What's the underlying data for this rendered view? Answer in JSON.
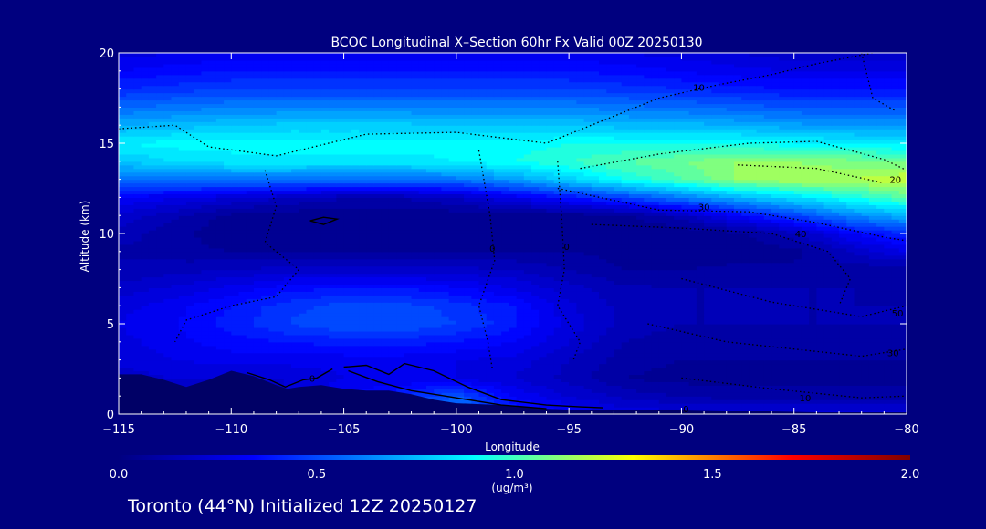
{
  "chart_data": {
    "type": "heatmap",
    "title": "BCOC Longitudinal X–Section 60hr  Fx Valid 00Z 20250130",
    "xlabel": "Longitude",
    "ylabel": "Altitude (km)",
    "xlim": [
      -115,
      -80
    ],
    "ylim": [
      0,
      20
    ],
    "x_ticks": [
      -115,
      -110,
      -105,
      -100,
      -95,
      -90,
      -85,
      -80
    ],
    "x_tick_labels": [
      "−115",
      "−110",
      "−105",
      "−100",
      "−95",
      "−90",
      "−85",
      "−80"
    ],
    "y_ticks": [
      0,
      5,
      10,
      15,
      20
    ],
    "y_tick_labels": [
      "0",
      "5",
      "10",
      "15",
      "20"
    ],
    "colorbar": {
      "min": 0.0,
      "max": 2.0,
      "ticks": [
        0.0,
        0.5,
        1.0,
        1.5,
        2.0
      ],
      "tick_labels": [
        "0.0",
        "0.5",
        "1.0",
        "1.5",
        "2.0"
      ],
      "units_label": "(ug/m³)",
      "colors": [
        "#000080",
        "#0000ff",
        "#00ffff",
        "#ffff00",
        "#ff0000",
        "#800000"
      ]
    },
    "grid": {
      "lon": [
        -115,
        -112.5,
        -110,
        -107.5,
        -105,
        -102.5,
        -100,
        -97.5,
        -95,
        -92.5,
        -90,
        -87.5,
        -85,
        -82.5,
        -80
      ],
      "alt": [
        0,
        1,
        2,
        3,
        4,
        5,
        6,
        7,
        8,
        9,
        10,
        11,
        12,
        13,
        14,
        15,
        16,
        17,
        18,
        19,
        20
      ],
      "values": [
        [
          0.2,
          0.2,
          0.2,
          0.25,
          0.55,
          0.65,
          0.7,
          0.45,
          0.35,
          0.3,
          0.28,
          0.28,
          0.28,
          0.28,
          0.28
        ],
        [
          0.2,
          0.2,
          0.2,
          0.25,
          0.35,
          0.45,
          0.55,
          0.35,
          0.25,
          0.18,
          0.15,
          0.12,
          0.12,
          0.12,
          0.12
        ],
        [
          0.22,
          0.25,
          0.25,
          0.25,
          0.3,
          0.3,
          0.3,
          0.25,
          0.18,
          0.1,
          0.08,
          0.08,
          0.08,
          0.08,
          0.08
        ],
        [
          0.26,
          0.3,
          0.32,
          0.32,
          0.32,
          0.32,
          0.3,
          0.28,
          0.2,
          0.12,
          0.1,
          0.1,
          0.1,
          0.1,
          0.1
        ],
        [
          0.28,
          0.33,
          0.38,
          0.4,
          0.42,
          0.42,
          0.4,
          0.35,
          0.25,
          0.15,
          0.12,
          0.12,
          0.12,
          0.12,
          0.12
        ],
        [
          0.3,
          0.35,
          0.42,
          0.5,
          0.55,
          0.55,
          0.5,
          0.42,
          0.28,
          0.18,
          0.15,
          0.15,
          0.15,
          0.15,
          0.15
        ],
        [
          0.28,
          0.33,
          0.4,
          0.48,
          0.52,
          0.52,
          0.48,
          0.4,
          0.26,
          0.18,
          0.15,
          0.15,
          0.15,
          0.15,
          0.15
        ],
        [
          0.22,
          0.26,
          0.32,
          0.38,
          0.4,
          0.4,
          0.36,
          0.3,
          0.22,
          0.16,
          0.15,
          0.15,
          0.15,
          0.15,
          0.12
        ],
        [
          0.16,
          0.18,
          0.2,
          0.22,
          0.22,
          0.22,
          0.22,
          0.2,
          0.15,
          0.1,
          0.1,
          0.12,
          0.12,
          0.12,
          0.1
        ],
        [
          0.14,
          0.12,
          0.1,
          0.1,
          0.1,
          0.1,
          0.1,
          0.1,
          0.1,
          0.08,
          0.06,
          0.06,
          0.08,
          0.2,
          0.3
        ],
        [
          0.18,
          0.12,
          0.06,
          0.06,
          0.06,
          0.06,
          0.06,
          0.06,
          0.06,
          0.06,
          0.05,
          0.08,
          0.18,
          0.35,
          0.45
        ],
        [
          0.24,
          0.16,
          0.08,
          0.06,
          0.06,
          0.06,
          0.06,
          0.06,
          0.06,
          0.08,
          0.18,
          0.35,
          0.5,
          0.65,
          0.75
        ],
        [
          0.35,
          0.3,
          0.25,
          0.2,
          0.15,
          0.15,
          0.2,
          0.3,
          0.4,
          0.5,
          0.62,
          0.75,
          0.85,
          0.95,
          1.05
        ],
        [
          0.6,
          0.62,
          0.62,
          0.62,
          0.6,
          0.6,
          0.62,
          0.7,
          0.82,
          0.95,
          1.05,
          1.15,
          1.2,
          1.2,
          1.25
        ],
        [
          0.8,
          0.85,
          0.88,
          0.88,
          0.88,
          0.88,
          0.9,
          0.95,
          1.0,
          1.05,
          1.1,
          1.15,
          1.15,
          1.12,
          1.1
        ],
        [
          0.9,
          0.92,
          0.92,
          0.92,
          0.92,
          0.92,
          0.92,
          0.92,
          0.95,
          0.95,
          0.95,
          0.95,
          0.92,
          0.9,
          0.88
        ],
        [
          0.75,
          0.78,
          0.8,
          0.82,
          0.82,
          0.82,
          0.8,
          0.8,
          0.8,
          0.78,
          0.78,
          0.75,
          0.72,
          0.7,
          0.7
        ],
        [
          0.6,
          0.62,
          0.65,
          0.65,
          0.65,
          0.65,
          0.65,
          0.65,
          0.65,
          0.62,
          0.6,
          0.58,
          0.55,
          0.55,
          0.55
        ],
        [
          0.45,
          0.48,
          0.5,
          0.5,
          0.5,
          0.5,
          0.5,
          0.5,
          0.5,
          0.48,
          0.45,
          0.42,
          0.4,
          0.4,
          0.4
        ],
        [
          0.35,
          0.38,
          0.4,
          0.4,
          0.4,
          0.4,
          0.4,
          0.4,
          0.4,
          0.38,
          0.35,
          0.32,
          0.3,
          0.3,
          0.3
        ],
        [
          0.28,
          0.3,
          0.32,
          0.32,
          0.32,
          0.32,
          0.32,
          0.32,
          0.32,
          0.3,
          0.28,
          0.25,
          0.22,
          0.22,
          0.22
        ]
      ]
    },
    "terrain": {
      "lon": [
        -115,
        -114,
        -113,
        -112,
        -111,
        -110,
        -109,
        -108,
        -107.5,
        -107,
        -106,
        -105,
        -104,
        -103,
        -102,
        -101,
        -100,
        -98,
        -96,
        -95,
        -94,
        -92,
        -90,
        -88,
        -86,
        -84,
        -82,
        -80
      ],
      "alt": [
        2.2,
        2.2,
        1.9,
        1.5,
        1.9,
        2.4,
        2.1,
        1.6,
        1.4,
        1.5,
        1.6,
        1.4,
        1.3,
        1.3,
        1.1,
        0.8,
        0.6,
        0.5,
        0.3,
        0.25,
        0.2,
        0.2,
        0.2,
        0.15,
        0.15,
        0.1,
        0.1,
        0.1
      ]
    },
    "temperature_contours": {
      "units": "°C",
      "labels": [
        {
          "text": "-10",
          "lon": -89.3,
          "alt": 18.1
        },
        {
          "text": "20",
          "lon": -80.5,
          "alt": 13.0
        },
        {
          "text": "30",
          "lon": -89.0,
          "alt": 11.5
        },
        {
          "text": "40",
          "lon": -84.7,
          "alt": 10.0
        },
        {
          "text": "0",
          "lon": -98.4,
          "alt": 9.2
        },
        {
          "text": "0",
          "lon": -95.1,
          "alt": 9.3
        },
        {
          "text": "0",
          "lon": -89.8,
          "alt": 0.3
        },
        {
          "text": "50",
          "lon": -80.4,
          "alt": 5.6
        },
        {
          "text": "30",
          "lon": -80.6,
          "alt": 3.4
        },
        {
          "text": "10",
          "lon": -84.5,
          "alt": 0.9
        },
        {
          "text": "0",
          "lon": -106.4,
          "alt": 2.0
        }
      ],
      "lines": [
        [
          [
            -115,
            15.8
          ],
          [
            -112.5,
            16.0
          ],
          [
            -111,
            14.8
          ],
          [
            -108,
            14.3
          ],
          [
            -104,
            15.5
          ],
          [
            -100,
            15.6
          ],
          [
            -96,
            15.0
          ],
          [
            -93,
            16.5
          ],
          [
            -91,
            17.5
          ],
          [
            -88.5,
            18.2
          ],
          [
            -86,
            18.8
          ],
          [
            -84,
            19.4
          ],
          [
            -81.5,
            20
          ]
        ],
        [
          [
            -82,
            20
          ],
          [
            -81.5,
            17.5
          ],
          [
            -80.5,
            16.8
          ]
        ],
        [
          [
            -94.5,
            13.6
          ],
          [
            -91,
            14.4
          ],
          [
            -87,
            15.0
          ],
          [
            -84,
            15.1
          ],
          [
            -81,
            14.1
          ],
          [
            -80,
            13.5
          ]
        ],
        [
          [
            -87.5,
            13.8
          ],
          [
            -84,
            13.6
          ],
          [
            -81,
            12.8
          ]
        ],
        [
          [
            -95.5,
            12.5
          ],
          [
            -91,
            11.3
          ],
          [
            -87,
            11.2
          ],
          [
            -84,
            10.6
          ],
          [
            -81,
            9.8
          ],
          [
            -80,
            9.6
          ]
        ],
        [
          [
            -94,
            10.5
          ],
          [
            -90,
            10.3
          ],
          [
            -86,
            10.0
          ],
          [
            -83.5,
            9.0
          ],
          [
            -82.5,
            7.5
          ],
          [
            -83,
            6.0
          ]
        ],
        [
          [
            -99,
            14.6
          ],
          [
            -98.5,
            11.0
          ],
          [
            -98.3,
            8.5
          ],
          [
            -99,
            6.0
          ],
          [
            -98.6,
            4.0
          ],
          [
            -98.4,
            2.5
          ]
        ],
        [
          [
            -95.5,
            14.0
          ],
          [
            -95.3,
            10.5
          ],
          [
            -95.2,
            8.0
          ],
          [
            -95.5,
            6.0
          ],
          [
            -94.5,
            4.0
          ],
          [
            -94.8,
            3.0
          ]
        ],
        [
          [
            -108.5,
            13.5
          ],
          [
            -108,
            11.5
          ],
          [
            -108.5,
            9.5
          ],
          [
            -107,
            8.0
          ],
          [
            -108,
            6.5
          ],
          [
            -110,
            6.0
          ],
          [
            -112,
            5.2
          ],
          [
            -112.5,
            4.0
          ]
        ],
        [
          [
            -91.5,
            5.0
          ],
          [
            -88,
            4.0
          ],
          [
            -85,
            3.6
          ],
          [
            -82,
            3.2
          ],
          [
            -80,
            3.6
          ]
        ],
        [
          [
            -90,
            7.5
          ],
          [
            -86,
            6.2
          ],
          [
            -82,
            5.4
          ],
          [
            -80,
            6.0
          ]
        ],
        [
          [
            -90,
            2.0
          ],
          [
            -86,
            1.4
          ],
          [
            -82,
            0.9
          ],
          [
            -80,
            1.0
          ]
        ]
      ]
    },
    "solid_contours": [
      [
        [
          -109.3,
          2.3
        ],
        [
          -108.3,
          1.9
        ],
        [
          -107.6,
          1.5
        ],
        [
          -106.8,
          1.9
        ],
        [
          -106.2,
          2.0
        ],
        [
          -105.5,
          2.5
        ]
      ],
      [
        [
          -105,
          2.6
        ],
        [
          -104,
          2.7
        ],
        [
          -103,
          2.2
        ],
        [
          -102.3,
          2.8
        ],
        [
          -101,
          2.4
        ],
        [
          -99.5,
          1.5
        ],
        [
          -98,
          0.8
        ],
        [
          -96,
          0.5
        ],
        [
          -94.5,
          0.4
        ],
        [
          -93.5,
          0.35
        ]
      ],
      [
        [
          -104.8,
          2.4
        ],
        [
          -103.5,
          1.8
        ],
        [
          -102,
          1.3
        ],
        [
          -100,
          0.9
        ],
        [
          -98,
          0.5
        ],
        [
          -96,
          0.3
        ]
      ],
      [
        [
          -106.5,
          10.7
        ],
        [
          -105.9,
          10.9
        ],
        [
          -105.3,
          10.8
        ],
        [
          -105.9,
          10.5
        ],
        [
          -106.5,
          10.7
        ]
      ]
    ]
  },
  "labels": {
    "title": "BCOC Longitudinal X–Section 60hr  Fx Valid 00Z 20250130",
    "xlabel": "Longitude",
    "ylabel": "Altitude (km)",
    "colorbar_units": "(ug/m³)",
    "footer": "Toronto (44°N) Initialized 12Z 20250127"
  }
}
